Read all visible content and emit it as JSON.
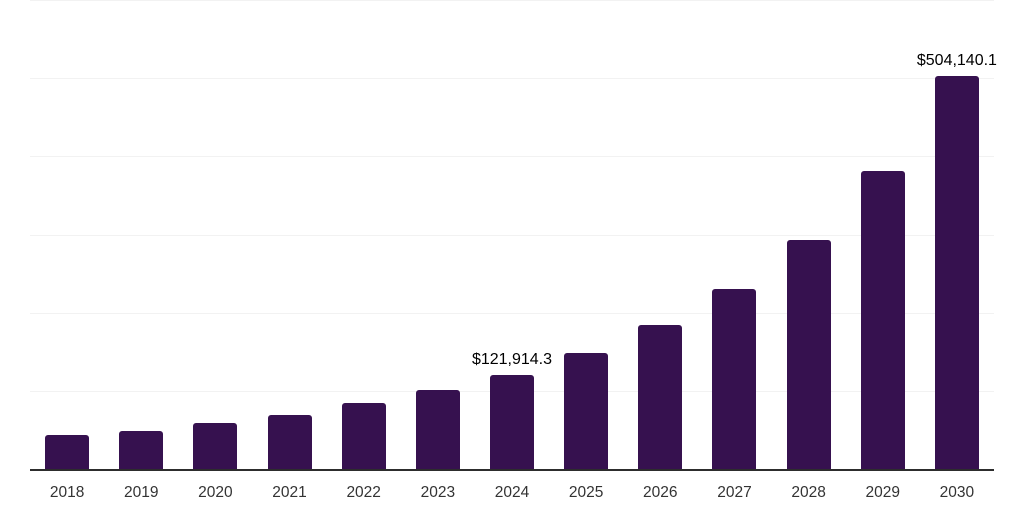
{
  "chart": {
    "background_color": "#ffffff",
    "bar_color": "#36114F",
    "axis_line_color": "#2d2d2d",
    "gridline_color": "#f2f2f2",
    "tick_label_color": "#333333",
    "data_label_color": "#000000"
  },
  "chart_data": {
    "type": "bar",
    "title": "",
    "xlabel": "",
    "ylabel": "",
    "categories": [
      "2018",
      "2019",
      "2020",
      "2021",
      "2022",
      "2023",
      "2024",
      "2025",
      "2026",
      "2027",
      "2028",
      "2029",
      "2030"
    ],
    "values": [
      44500,
      50400,
      60700,
      71000,
      85600,
      102600,
      121914.3,
      149700,
      185200,
      231000,
      293800,
      382400,
      504140.1
    ],
    "data_labels": [
      null,
      null,
      null,
      null,
      null,
      null,
      "$121,914.3",
      null,
      null,
      null,
      null,
      null,
      "$504,140.1"
    ],
    "ylim": [
      0,
      600000
    ],
    "gridline_values": [
      0,
      100000,
      200000,
      300000,
      400000,
      500000,
      600000
    ],
    "grid": "horizontal-light",
    "legend": "none",
    "y_axis_tick_labels_visible": false
  }
}
